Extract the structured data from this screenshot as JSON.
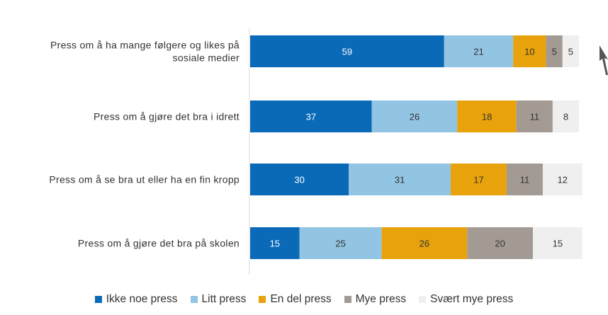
{
  "chart_data": {
    "type": "bar",
    "orientation": "horizontal",
    "stacked": true,
    "categories": [
      "Press om å ha mange følgere og likes på sosiale medier",
      "Press om å gjøre det bra i idrett",
      "Press om å se bra ut eller ha en fin kropp",
      "Press om å gjøre det bra på skolen"
    ],
    "category_lines": [
      [
        "Press om å ha mange følgere og likes på",
        "sosiale medier"
      ],
      [
        "Press om å gjøre det bra i idrett"
      ],
      [
        "Press om å se bra ut eller ha en fin kropp"
      ],
      [
        "Press om å gjøre det bra på skolen"
      ]
    ],
    "series": [
      {
        "name": "Ikke noe press",
        "values": [
          59,
          37,
          30,
          15
        ],
        "color": "#0a6ab8",
        "label_color": "#ffffff"
      },
      {
        "name": "Litt press",
        "values": [
          21,
          26,
          31,
          25
        ],
        "color": "#92c4e3",
        "label_color": "#333333"
      },
      {
        "name": "En del press",
        "values": [
          10,
          18,
          17,
          26
        ],
        "color": "#e8a20c",
        "label_color": "#333333"
      },
      {
        "name": "Mye press",
        "values": [
          5,
          11,
          11,
          20
        ],
        "color": "#a39a93",
        "label_color": "#333333"
      },
      {
        "name": "Svært mye press",
        "values": [
          5,
          8,
          12,
          15
        ],
        "color": "#efefef",
        "label_color": "#333333"
      }
    ],
    "xlim": [
      0,
      100
    ],
    "grid": false,
    "legend_position": "bottom"
  }
}
